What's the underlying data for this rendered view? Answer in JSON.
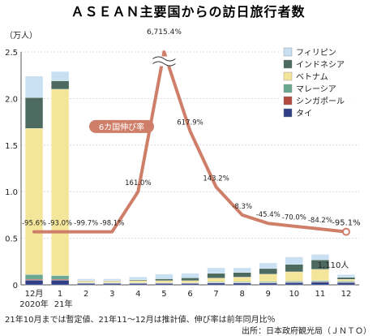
{
  "chart_data": {
    "type": "bar",
    "title": "ＡＳＥＡＮ主要国からの訪日旅行者数",
    "y_unit": "（万人）",
    "ylim": [
      0,
      2.5
    ],
    "yticks": [
      "0",
      "0.5",
      "1.0",
      "1.5",
      "2.0",
      "2.5"
    ],
    "categories": [
      "12月",
      "1",
      "2",
      "3",
      "4",
      "5",
      "6",
      "7",
      "8",
      "9",
      "10",
      "11",
      "12"
    ],
    "year_labels": [
      "2020年",
      "21年"
    ],
    "series": [
      {
        "name": "タイ",
        "color": "#2e3f86",
        "values": [
          0.05,
          0.05,
          0.015,
          0.015,
          0.015,
          0.015,
          0.015,
          0.02,
          0.02,
          0.02,
          0.025,
          0.03,
          0.025
        ]
      },
      {
        "name": "シンガポール",
        "color": "#b24a3d",
        "values": [
          0.01,
          0.01,
          0.004,
          0.004,
          0.004,
          0.004,
          0.004,
          0.005,
          0.005,
          0.005,
          0.005,
          0.005,
          0.005
        ]
      },
      {
        "name": "マレーシア",
        "color": "#6aa892",
        "values": [
          0.05,
          0.04,
          0.006,
          0.006,
          0.006,
          0.006,
          0.006,
          0.008,
          0.008,
          0.01,
          0.01,
          0.012,
          0.01
        ]
      },
      {
        "name": "ベトナム",
        "color": "#f3e69a",
        "values": [
          1.57,
          2.0,
          0.015,
          0.015,
          0.02,
          0.02,
          0.02,
          0.04,
          0.05,
          0.08,
          0.1,
          0.12,
          0.02
        ]
      },
      {
        "name": "インドネシア",
        "color": "#4d6a60",
        "values": [
          0.33,
          0.09,
          0.005,
          0.005,
          0.01,
          0.02,
          0.03,
          0.05,
          0.05,
          0.06,
          0.08,
          0.1,
          0.02
        ]
      },
      {
        "name": "フィリピン",
        "color": "#c9dff2",
        "values": [
          0.23,
          0.1,
          0.02,
          0.02,
          0.03,
          0.05,
          0.05,
          0.06,
          0.05,
          0.06,
          0.08,
          0.06,
          0.03
        ]
      }
    ],
    "growth_line": {
      "label": "6カ国伸び率",
      "color": "#cf7f69",
      "y_values": [
        0.57,
        0.57,
        0.57,
        0.57,
        1.0,
        2.5,
        1.65,
        1.05,
        0.75,
        0.66,
        0.63,
        0.6,
        0.57
      ],
      "labels": [
        "-95.6%",
        "-93.0%",
        "-99.7%",
        "-98.1%",
        "161.0%",
        "6,715.4%",
        "617.9%",
        "143.2%",
        "-8.3%",
        "-45.4%",
        "-70.0%",
        "-84.2%",
        "-95.1%"
      ]
    },
    "last_bar_label": "1,110人"
  },
  "footnote": "21年10月までは暫定値、21年11〜12月は推計値、伸び率は前年同月比％",
  "source": "出所：日本政府観光局（ＪＮＴＯ）"
}
